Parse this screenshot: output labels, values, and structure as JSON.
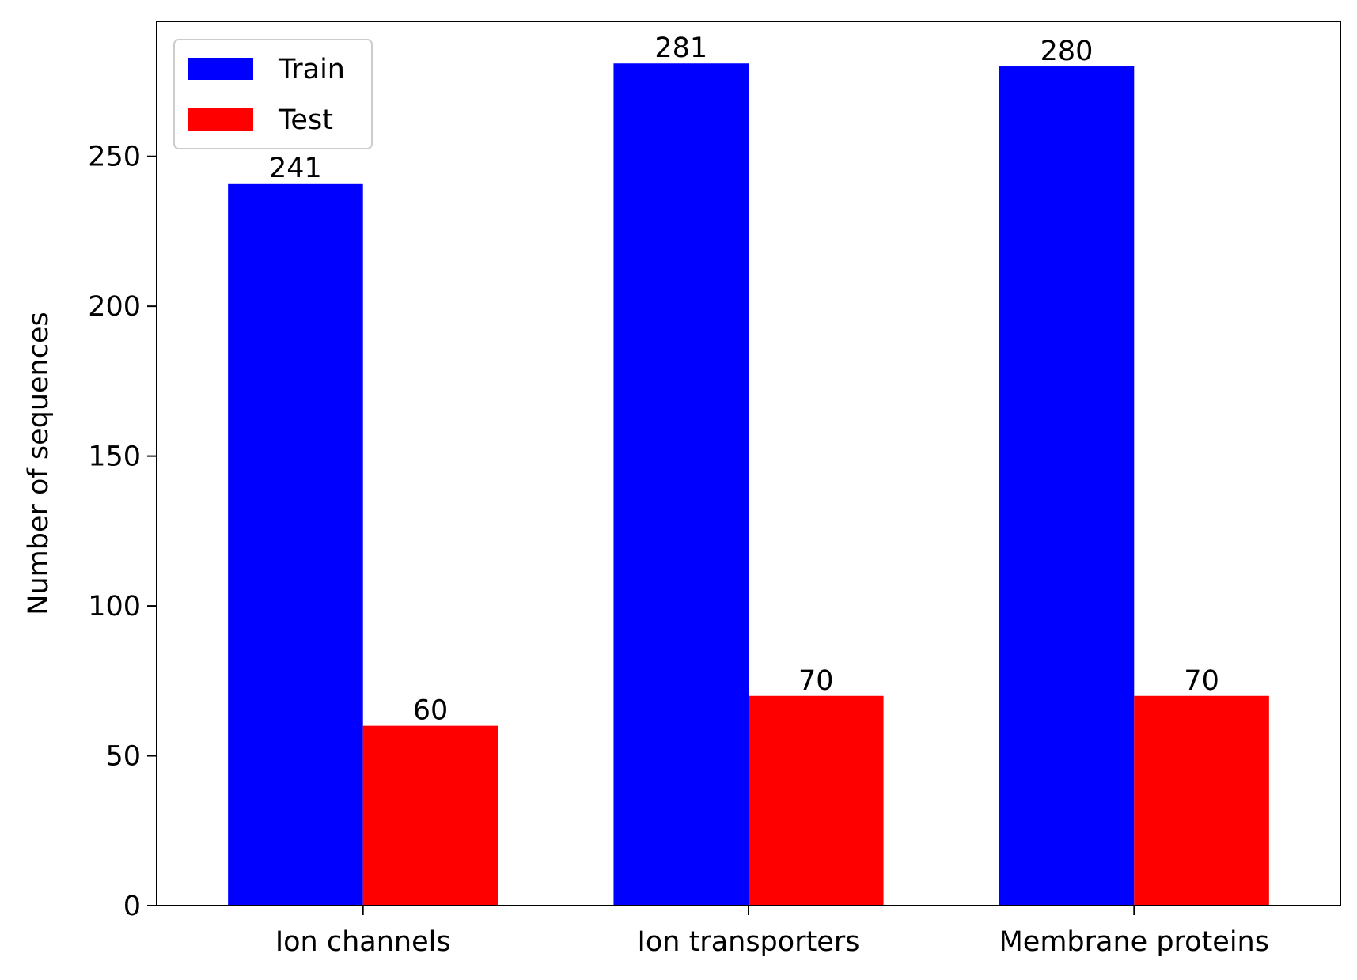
{
  "chart_data": {
    "type": "bar",
    "categories": [
      "Ion channels",
      "Ion transporters",
      "Membrane proteins"
    ],
    "series": [
      {
        "name": "Train",
        "values": [
          241,
          281,
          280
        ],
        "color": "#0000ff"
      },
      {
        "name": "Test",
        "values": [
          60,
          70,
          70
        ],
        "color": "#ff0000"
      }
    ],
    "title": "",
    "xlabel": "",
    "ylabel": "Number of sequences",
    "ylim": [
      0,
      295.05
    ],
    "yticks": [
      0,
      50,
      100,
      150,
      200,
      250
    ],
    "grid": false,
    "legend": "top-left"
  }
}
